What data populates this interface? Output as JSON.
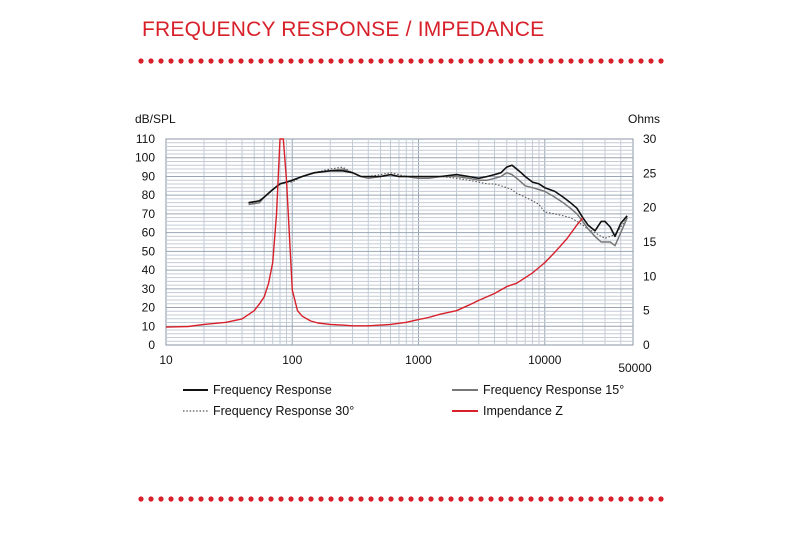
{
  "header": {
    "title": "FREQUENCY RESPONSE / IMPEDANCE"
  },
  "colors": {
    "accent": "#d7202a",
    "fr": "#111111",
    "fr15": "#777777",
    "fr30": "#555555",
    "imp": "#d7202a",
    "grid_major": "#9aa6b4",
    "grid_minor": "#c4ccd6"
  },
  "chart_data": {
    "type": "line",
    "xscale": "log",
    "xlim": [
      10,
      50000
    ],
    "ylim": [
      0,
      110
    ],
    "y2lim": [
      0,
      30
    ],
    "ylabel": "dB/SPL",
    "y2label": "Ohms",
    "x_ticks": [
      "10",
      "100",
      "1000",
      "10000",
      "50000"
    ],
    "x_tick_values": [
      10,
      100,
      1000,
      10000,
      50000
    ],
    "y_ticks": [
      "0",
      "10",
      "20",
      "30",
      "40",
      "50",
      "60",
      "70",
      "80",
      "90",
      "100",
      "110"
    ],
    "y2_ticks": [
      "0",
      "5",
      "10",
      "15",
      "20",
      "25",
      "30"
    ],
    "legend_position": "bottom",
    "series": [
      {
        "name": "Frequency Response",
        "axis": "left",
        "style": "solid",
        "x": [
          45,
          55,
          60,
          70,
          80,
          90,
          100,
          120,
          150,
          200,
          250,
          300,
          350,
          400,
          500,
          600,
          700,
          800,
          1000,
          1200,
          1500,
          2000,
          2500,
          3000,
          3500,
          4000,
          4500,
          5000,
          5500,
          6000,
          6500,
          7000,
          8000,
          9000,
          10000,
          12000,
          14000,
          16000,
          18000,
          20000,
          22000,
          25000,
          28000,
          30000,
          33000,
          36000,
          40000,
          45000
        ],
        "y": [
          76,
          77,
          79,
          83,
          86,
          87,
          88,
          90,
          92,
          93,
          93,
          92,
          90,
          90,
          90,
          91,
          90,
          90,
          90,
          90,
          90,
          91,
          90,
          89,
          90,
          91,
          92,
          95,
          96,
          94,
          92,
          90,
          87,
          86,
          84,
          82,
          79,
          76,
          73,
          68,
          64,
          61,
          66,
          66,
          63,
          58,
          65,
          69
        ]
      },
      {
        "name": "Frequency Response 15°",
        "axis": "left",
        "style": "solid",
        "x": [
          45,
          55,
          60,
          70,
          80,
          90,
          100,
          120,
          150,
          200,
          250,
          300,
          350,
          400,
          500,
          600,
          700,
          800,
          1000,
          1200,
          1500,
          2000,
          2500,
          3000,
          3500,
          4000,
          4500,
          5000,
          5500,
          6000,
          6500,
          7000,
          8000,
          9000,
          10000,
          12000,
          14000,
          16000,
          18000,
          20000,
          22000,
          25000,
          28000,
          30000,
          33000,
          36000,
          40000,
          45000
        ],
        "y": [
          75,
          76,
          79,
          83,
          86,
          87,
          88,
          90,
          92,
          93,
          94,
          92,
          90,
          89,
          90,
          91,
          90,
          90,
          89,
          89,
          90,
          90,
          89,
          88,
          88,
          89,
          90,
          92,
          91,
          89,
          87,
          85,
          84,
          83,
          82,
          79,
          76,
          73,
          70,
          66,
          62,
          58,
          55,
          55,
          55,
          53,
          60,
          68
        ]
      },
      {
        "name": "Frequency Response 30°",
        "axis": "left",
        "style": "dotted",
        "x": [
          45,
          55,
          60,
          70,
          80,
          90,
          100,
          120,
          150,
          200,
          250,
          300,
          350,
          400,
          500,
          600,
          700,
          800,
          1000,
          1200,
          1500,
          2000,
          2500,
          3000,
          3500,
          4000,
          4500,
          5000,
          5500,
          6000,
          6500,
          7000,
          8000,
          9000,
          10000,
          12000,
          14000,
          16000,
          18000,
          20000,
          22000,
          25000,
          28000,
          30000,
          33000,
          36000,
          40000,
          45000
        ],
        "y": [
          76,
          76,
          79,
          83,
          86,
          87,
          87,
          90,
          92,
          94,
          95,
          92,
          90,
          90,
          91,
          92,
          91,
          90,
          89,
          89,
          90,
          89,
          88,
          87,
          86,
          86,
          85,
          84,
          83,
          81,
          80,
          79,
          77,
          75,
          71,
          70,
          69,
          68,
          66,
          64,
          62,
          60,
          58,
          57,
          58,
          59,
          63,
          68
        ]
      },
      {
        "name": "Impendance Z",
        "axis": "right",
        "style": "solid",
        "x": [
          10,
          15,
          20,
          30,
          40,
          50,
          55,
          60,
          65,
          70,
          75,
          80,
          85,
          90,
          95,
          100,
          110,
          120,
          140,
          160,
          200,
          250,
          300,
          400,
          500,
          600,
          800,
          1000,
          1200,
          1500,
          2000,
          2500,
          3000,
          4000,
          5000,
          6000,
          7000,
          8000,
          10000,
          12000,
          15000,
          18000,
          20000
        ],
        "y": [
          2.6,
          2.7,
          3.0,
          3.3,
          3.8,
          5.0,
          6.0,
          7.0,
          9.0,
          12.0,
          19.0,
          30.0,
          30.0,
          24.0,
          16.0,
          8.0,
          5.0,
          4.2,
          3.5,
          3.2,
          3.0,
          2.9,
          2.8,
          2.8,
          2.9,
          3.0,
          3.3,
          3.7,
          4.0,
          4.5,
          5.0,
          5.8,
          6.5,
          7.5,
          8.5,
          9.0,
          9.8,
          10.5,
          12.0,
          13.5,
          15.5,
          17.5,
          18.5
        ]
      }
    ]
  }
}
